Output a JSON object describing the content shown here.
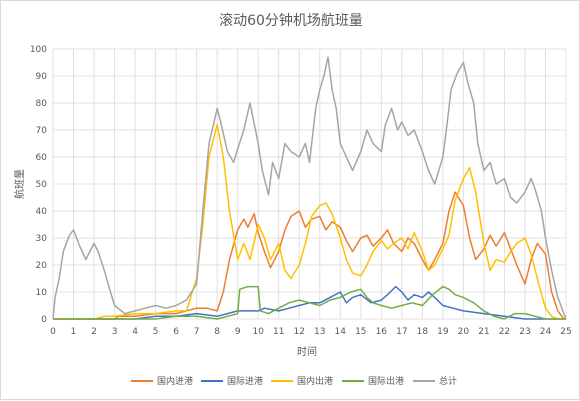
{
  "chart_data": {
    "type": "line",
    "title": "滚动60分钟机场航班量",
    "xlabel": "时间",
    "ylabel": "航班量",
    "xlim": [
      0,
      25
    ],
    "ylim": [
      0,
      100
    ],
    "x_ticks": [
      0,
      1,
      2,
      3,
      4,
      5,
      6,
      7,
      8,
      9,
      10,
      11,
      12,
      13,
      14,
      15,
      16,
      17,
      18,
      19,
      20,
      21,
      22,
      23,
      24,
      25
    ],
    "y_ticks": [
      0,
      10,
      20,
      30,
      40,
      50,
      60,
      70,
      80,
      90,
      100
    ],
    "grid": true,
    "legend_position": "bottom",
    "series": [
      {
        "name": "国内进港",
        "color": "#ed7d31",
        "points": [
          [
            0,
            0
          ],
          [
            2,
            0
          ],
          [
            3,
            0
          ],
          [
            3.2,
            1
          ],
          [
            4,
            1
          ],
          [
            5,
            2
          ],
          [
            6,
            2
          ],
          [
            6.5,
            3
          ],
          [
            7,
            4
          ],
          [
            7.5,
            4
          ],
          [
            8,
            3
          ],
          [
            8.3,
            10
          ],
          [
            8.6,
            22
          ],
          [
            9,
            33
          ],
          [
            9.3,
            37
          ],
          [
            9.5,
            34
          ],
          [
            9.8,
            39
          ],
          [
            10,
            32
          ],
          [
            10.3,
            25
          ],
          [
            10.6,
            19
          ],
          [
            11,
            25
          ],
          [
            11.3,
            33
          ],
          [
            11.6,
            38
          ],
          [
            12,
            40
          ],
          [
            12.3,
            34
          ],
          [
            12.6,
            37
          ],
          [
            13,
            38
          ],
          [
            13.3,
            33
          ],
          [
            13.6,
            36
          ],
          [
            14,
            34
          ],
          [
            14.3,
            29
          ],
          [
            14.6,
            25
          ],
          [
            15,
            30
          ],
          [
            15.3,
            31
          ],
          [
            15.6,
            27
          ],
          [
            16,
            30
          ],
          [
            16.3,
            33
          ],
          [
            16.6,
            28
          ],
          [
            17,
            25
          ],
          [
            17.3,
            30
          ],
          [
            17.6,
            28
          ],
          [
            18,
            22
          ],
          [
            18.3,
            18
          ],
          [
            18.6,
            22
          ],
          [
            19,
            28
          ],
          [
            19.3,
            40
          ],
          [
            19.6,
            47
          ],
          [
            20,
            42
          ],
          [
            20.3,
            30
          ],
          [
            20.6,
            22
          ],
          [
            21,
            26
          ],
          [
            21.3,
            31
          ],
          [
            21.6,
            27
          ],
          [
            22,
            32
          ],
          [
            22.3,
            26
          ],
          [
            22.6,
            20
          ],
          [
            23,
            13
          ],
          [
            23.3,
            22
          ],
          [
            23.6,
            28
          ],
          [
            24,
            24
          ],
          [
            24.3,
            10
          ],
          [
            24.6,
            3
          ],
          [
            24.9,
            0
          ],
          [
            25,
            0
          ]
        ]
      },
      {
        "name": "国际进港",
        "color": "#4472c4",
        "points": [
          [
            0,
            0
          ],
          [
            3,
            0
          ],
          [
            4,
            0
          ],
          [
            5,
            1
          ],
          [
            6,
            1
          ],
          [
            7,
            2
          ],
          [
            8,
            1
          ],
          [
            8.5,
            2
          ],
          [
            9,
            3
          ],
          [
            9.5,
            3
          ],
          [
            10,
            3
          ],
          [
            10.3,
            4
          ],
          [
            11,
            3
          ],
          [
            11.5,
            4
          ],
          [
            12,
            5
          ],
          [
            12.5,
            6
          ],
          [
            13,
            6
          ],
          [
            13.5,
            8
          ],
          [
            14,
            10
          ],
          [
            14.3,
            6
          ],
          [
            14.6,
            8
          ],
          [
            15,
            9
          ],
          [
            15.5,
            6
          ],
          [
            16,
            7
          ],
          [
            16.3,
            9
          ],
          [
            16.7,
            12
          ],
          [
            17,
            10
          ],
          [
            17.3,
            7
          ],
          [
            17.6,
            9
          ],
          [
            18,
            8
          ],
          [
            18.3,
            10
          ],
          [
            18.6,
            8
          ],
          [
            19,
            5
          ],
          [
            19.5,
            4
          ],
          [
            20,
            3
          ],
          [
            21,
            2
          ],
          [
            22,
            1
          ],
          [
            23,
            0
          ],
          [
            25,
            0
          ]
        ]
      },
      {
        "name": "国内出港",
        "color": "#ffc000",
        "points": [
          [
            0,
            0
          ],
          [
            2,
            0
          ],
          [
            2.5,
            1
          ],
          [
            3,
            1
          ],
          [
            4,
            2
          ],
          [
            5,
            2
          ],
          [
            6,
            3
          ],
          [
            6.5,
            3
          ],
          [
            7,
            15
          ],
          [
            7.3,
            35
          ],
          [
            7.6,
            60
          ],
          [
            8,
            72
          ],
          [
            8.3,
            60
          ],
          [
            8.6,
            40
          ],
          [
            9,
            22
          ],
          [
            9.3,
            28
          ],
          [
            9.6,
            22
          ],
          [
            10,
            35
          ],
          [
            10.3,
            30
          ],
          [
            10.6,
            22
          ],
          [
            11,
            28
          ],
          [
            11.3,
            18
          ],
          [
            11.6,
            15
          ],
          [
            12,
            20
          ],
          [
            12.3,
            28
          ],
          [
            12.6,
            38
          ],
          [
            13,
            42
          ],
          [
            13.3,
            43
          ],
          [
            13.6,
            39
          ],
          [
            14,
            30
          ],
          [
            14.3,
            22
          ],
          [
            14.6,
            17
          ],
          [
            15,
            16
          ],
          [
            15.3,
            20
          ],
          [
            15.6,
            25
          ],
          [
            16,
            29
          ],
          [
            16.3,
            26
          ],
          [
            16.6,
            28
          ],
          [
            17,
            30
          ],
          [
            17.3,
            26
          ],
          [
            17.6,
            32
          ],
          [
            18,
            25
          ],
          [
            18.3,
            18
          ],
          [
            18.6,
            20
          ],
          [
            19,
            26
          ],
          [
            19.3,
            31
          ],
          [
            19.6,
            44
          ],
          [
            20,
            52
          ],
          [
            20.3,
            56
          ],
          [
            20.6,
            47
          ],
          [
            21,
            28
          ],
          [
            21.3,
            18
          ],
          [
            21.6,
            22
          ],
          [
            22,
            21
          ],
          [
            22.3,
            25
          ],
          [
            22.6,
            28
          ],
          [
            23,
            30
          ],
          [
            23.3,
            24
          ],
          [
            23.6,
            15
          ],
          [
            24,
            4
          ],
          [
            24.3,
            1
          ],
          [
            24.6,
            0
          ],
          [
            25,
            0
          ]
        ]
      },
      {
        "name": "国际出港",
        "color": "#70ad47",
        "points": [
          [
            0,
            0
          ],
          [
            3,
            0
          ],
          [
            4,
            0
          ],
          [
            5,
            0
          ],
          [
            6,
            1
          ],
          [
            7,
            1
          ],
          [
            8,
            0
          ],
          [
            8.5,
            1
          ],
          [
            9,
            2
          ],
          [
            9.1,
            11
          ],
          [
            9.5,
            12
          ],
          [
            10,
            12
          ],
          [
            10.1,
            3
          ],
          [
            10.5,
            2
          ],
          [
            11,
            4
          ],
          [
            11.5,
            6
          ],
          [
            12,
            7
          ],
          [
            12.5,
            6
          ],
          [
            13,
            5
          ],
          [
            13.5,
            7
          ],
          [
            14,
            8
          ],
          [
            14.5,
            10
          ],
          [
            15,
            11
          ],
          [
            15.3,
            8
          ],
          [
            15.6,
            6
          ],
          [
            16,
            5
          ],
          [
            16.5,
            4
          ],
          [
            17,
            5
          ],
          [
            17.5,
            6
          ],
          [
            18,
            5
          ],
          [
            18.5,
            9
          ],
          [
            19,
            12
          ],
          [
            19.3,
            11
          ],
          [
            19.6,
            9
          ],
          [
            20,
            8
          ],
          [
            20.5,
            6
          ],
          [
            21,
            3
          ],
          [
            21.5,
            1
          ],
          [
            22,
            0
          ],
          [
            22.5,
            2
          ],
          [
            23,
            2
          ],
          [
            23.5,
            1
          ],
          [
            24,
            0
          ],
          [
            25,
            0
          ]
        ]
      },
      {
        "name": "总计",
        "color": "#a5a5a5",
        "points": [
          [
            0,
            0
          ],
          [
            0.1,
            8
          ],
          [
            0.3,
            15
          ],
          [
            0.5,
            25
          ],
          [
            0.8,
            31
          ],
          [
            1,
            33
          ],
          [
            1.3,
            27
          ],
          [
            1.6,
            22
          ],
          [
            2,
            28
          ],
          [
            2.2,
            25
          ],
          [
            2.5,
            18
          ],
          [
            2.8,
            10
          ],
          [
            3,
            5
          ],
          [
            3.5,
            2
          ],
          [
            4,
            3
          ],
          [
            4.5,
            4
          ],
          [
            5,
            5
          ],
          [
            5.5,
            4
          ],
          [
            6,
            5
          ],
          [
            6.5,
            7
          ],
          [
            7,
            13
          ],
          [
            7.3,
            40
          ],
          [
            7.6,
            65
          ],
          [
            8,
            78
          ],
          [
            8.2,
            72
          ],
          [
            8.5,
            62
          ],
          [
            8.8,
            58
          ],
          [
            9,
            63
          ],
          [
            9.3,
            70
          ],
          [
            9.6,
            80
          ],
          [
            10,
            65
          ],
          [
            10.2,
            55
          ],
          [
            10.5,
            46
          ],
          [
            10.7,
            58
          ],
          [
            11,
            52
          ],
          [
            11.3,
            65
          ],
          [
            11.6,
            62
          ],
          [
            12,
            60
          ],
          [
            12.3,
            65
          ],
          [
            12.5,
            58
          ],
          [
            12.8,
            78
          ],
          [
            13,
            85
          ],
          [
            13.2,
            90
          ],
          [
            13.4,
            97
          ],
          [
            13.6,
            85
          ],
          [
            13.8,
            78
          ],
          [
            14,
            65
          ],
          [
            14.3,
            60
          ],
          [
            14.6,
            55
          ],
          [
            15,
            62
          ],
          [
            15.3,
            70
          ],
          [
            15.6,
            65
          ],
          [
            16,
            62
          ],
          [
            16.2,
            72
          ],
          [
            16.5,
            78
          ],
          [
            16.8,
            70
          ],
          [
            17,
            73
          ],
          [
            17.3,
            68
          ],
          [
            17.6,
            70
          ],
          [
            18,
            62
          ],
          [
            18.3,
            55
          ],
          [
            18.6,
            50
          ],
          [
            19,
            60
          ],
          [
            19.2,
            72
          ],
          [
            19.4,
            85
          ],
          [
            19.7,
            91
          ],
          [
            20,
            95
          ],
          [
            20.2,
            88
          ],
          [
            20.5,
            80
          ],
          [
            20.7,
            65
          ],
          [
            21,
            55
          ],
          [
            21.3,
            58
          ],
          [
            21.6,
            50
          ],
          [
            22,
            52
          ],
          [
            22.3,
            45
          ],
          [
            22.6,
            43
          ],
          [
            23,
            47
          ],
          [
            23.3,
            52
          ],
          [
            23.5,
            48
          ],
          [
            23.8,
            40
          ],
          [
            24,
            30
          ],
          [
            24.3,
            18
          ],
          [
            24.6,
            8
          ],
          [
            24.9,
            2
          ],
          [
            25,
            0
          ]
        ]
      }
    ]
  }
}
